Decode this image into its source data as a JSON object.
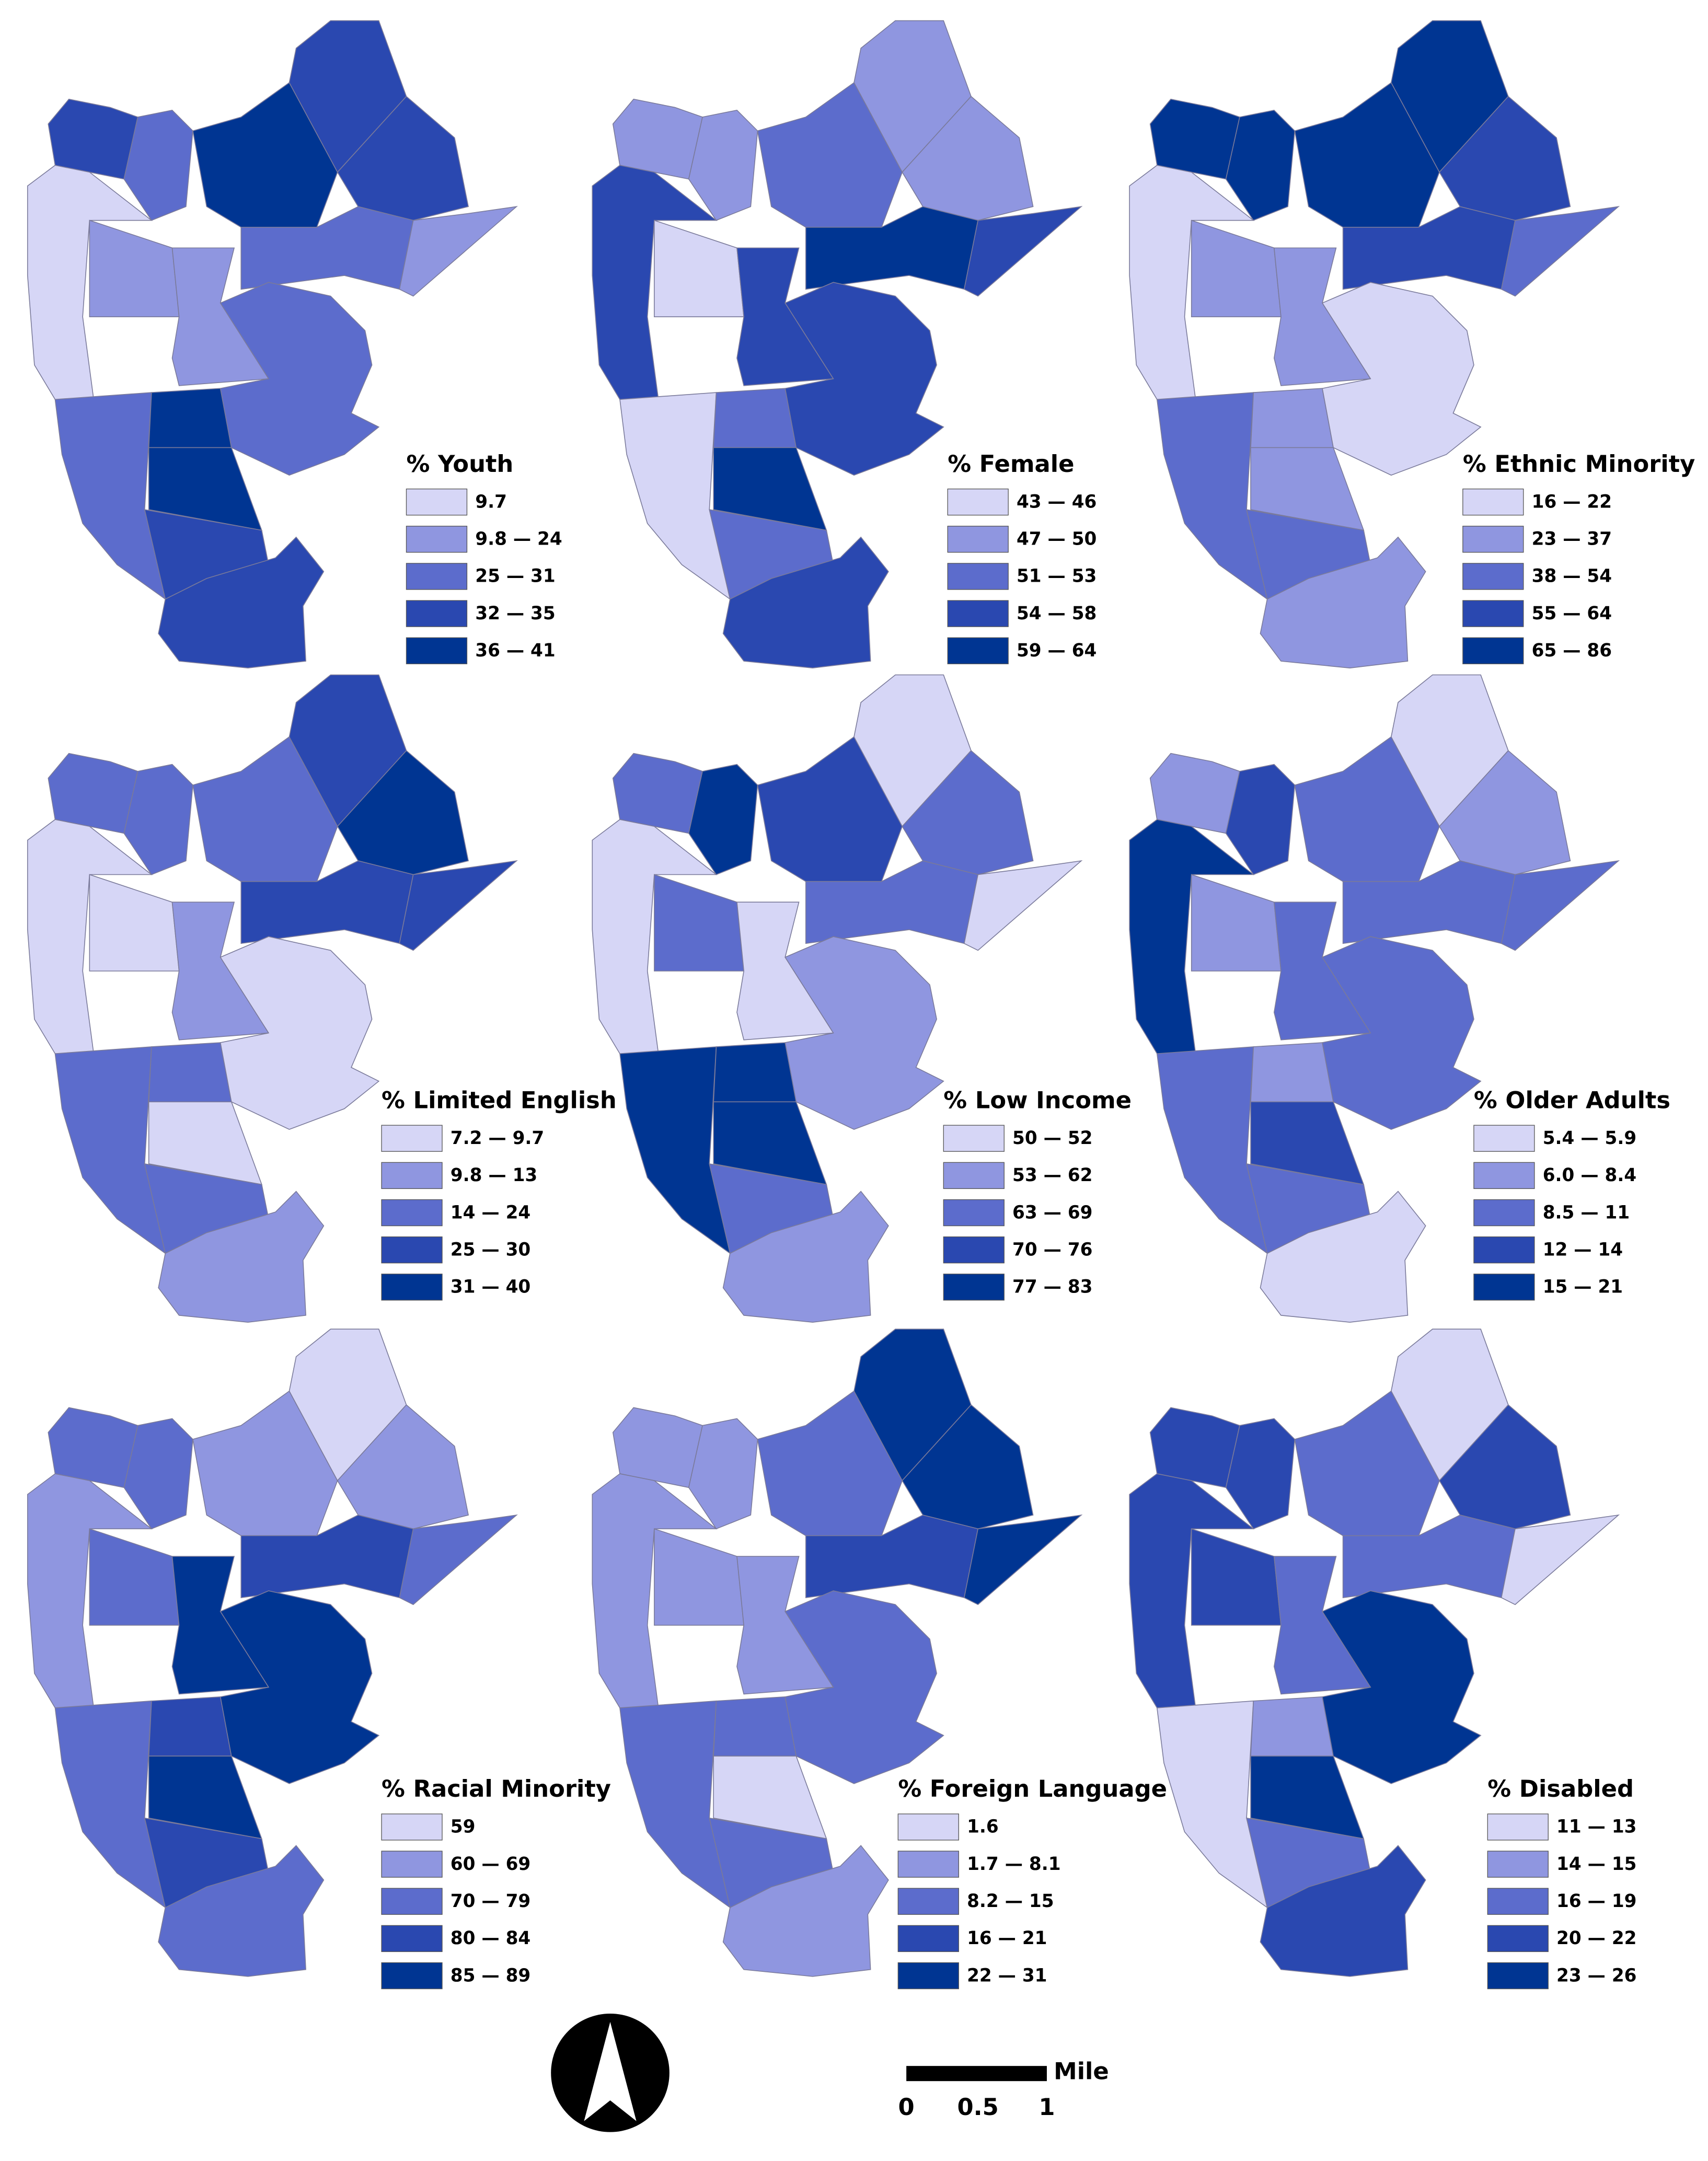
{
  "maps": [
    {
      "title": "% Youth",
      "legend": [
        "9.7",
        "9.8 — 24",
        "25 — 31",
        "32 — 35",
        "36 — 41"
      ],
      "tract_classes": [
        3,
        2,
        0,
        1,
        1,
        2,
        4,
        4,
        3,
        3,
        4,
        3,
        3,
        2,
        1,
        2
      ]
    },
    {
      "title": "% Female",
      "legend": [
        "43 — 46",
        "47 — 50",
        "51 — 53",
        "54 — 58",
        "59 — 64"
      ],
      "tract_classes": [
        1,
        1,
        3,
        0,
        3,
        0,
        2,
        4,
        2,
        3,
        2,
        1,
        1,
        4,
        3,
        3
      ]
    },
    {
      "title": "% Ethnic Minority",
      "legend": [
        "16 — 22",
        "23 — 37",
        "38 — 54",
        "55 — 64",
        "65 — 86"
      ],
      "tract_classes": [
        4,
        4,
        0,
        1,
        1,
        2,
        1,
        1,
        2,
        1,
        4,
        4,
        3,
        3,
        2,
        0
      ]
    },
    {
      "title": "% Limited English",
      "legend": [
        "7.2 — 9.7",
        "9.8 — 13",
        "14 — 24",
        "25 — 30",
        "31 — 40"
      ],
      "tract_classes": [
        2,
        2,
        0,
        0,
        1,
        2,
        2,
        0,
        2,
        1,
        2,
        3,
        4,
        3,
        3,
        0
      ]
    },
    {
      "title": "% Low Income",
      "legend": [
        "50 — 52",
        "53 — 62",
        "63 — 69",
        "70 — 76",
        "77 — 83"
      ],
      "tract_classes": [
        2,
        4,
        0,
        2,
        0,
        4,
        4,
        4,
        2,
        1,
        3,
        0,
        2,
        2,
        0,
        1
      ]
    },
    {
      "title": "% Older Adults",
      "legend": [
        "5.4 — 5.9",
        "6.0 — 8.4",
        "8.5 — 11",
        "12 — 14",
        "15 — 21"
      ],
      "tract_classes": [
        1,
        3,
        4,
        1,
        2,
        2,
        1,
        3,
        2,
        0,
        2,
        0,
        1,
        2,
        2,
        2
      ]
    },
    {
      "title": "% Racial Minority",
      "legend": [
        "59",
        "60 — 69",
        "70 — 79",
        "80 — 84",
        "85 — 89"
      ],
      "tract_classes": [
        2,
        2,
        1,
        2,
        4,
        2,
        3,
        4,
        3,
        2,
        1,
        0,
        1,
        3,
        2,
        4
      ]
    },
    {
      "title": "% Foreign Language",
      "legend": [
        "1.6",
        "1.7 — 8.1",
        "8.2 — 15",
        "16 — 21",
        "22 — 31"
      ],
      "tract_classes": [
        1,
        1,
        1,
        1,
        1,
        2,
        2,
        0,
        2,
        1,
        2,
        4,
        4,
        3,
        4,
        2
      ]
    },
    {
      "title": "% Disabled",
      "legend": [
        "11 — 13",
        "14 — 15",
        "16 — 19",
        "20 — 22",
        "23 — 26"
      ],
      "tract_classes": [
        3,
        3,
        3,
        3,
        2,
        0,
        1,
        4,
        2,
        3,
        2,
        0,
        3,
        2,
        0,
        4
      ]
    }
  ],
  "legend_colors": [
    "#d6d6f6",
    "#8f96e0",
    "#5c6ccc",
    "#2a48b0",
    "#003592"
  ],
  "scale_bar": {
    "unit": "Mile",
    "labels": [
      "0",
      "0.5",
      "1"
    ]
  }
}
